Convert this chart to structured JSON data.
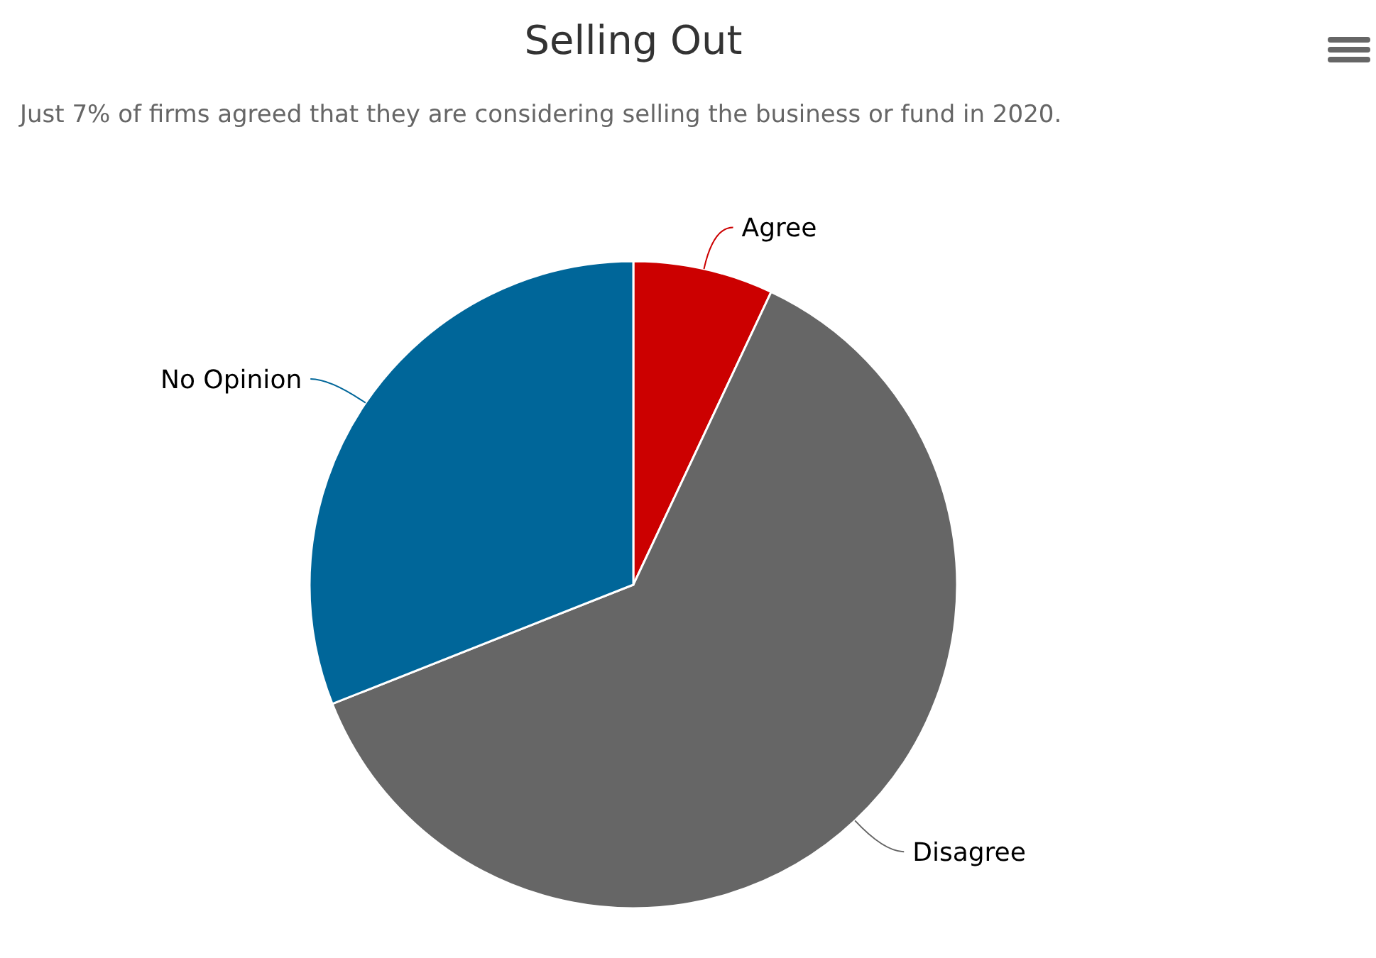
{
  "chart_data": {
    "type": "pie",
    "title": "Selling Out",
    "subtitle": "Just 7% of firms agreed that they are considering selling the business or fund in 2020.",
    "categories": [
      "Agree",
      "Disagree",
      "No Opinion"
    ],
    "values": [
      7,
      62,
      31
    ],
    "colors": [
      "#cc0000",
      "#666666",
      "#006699"
    ]
  }
}
